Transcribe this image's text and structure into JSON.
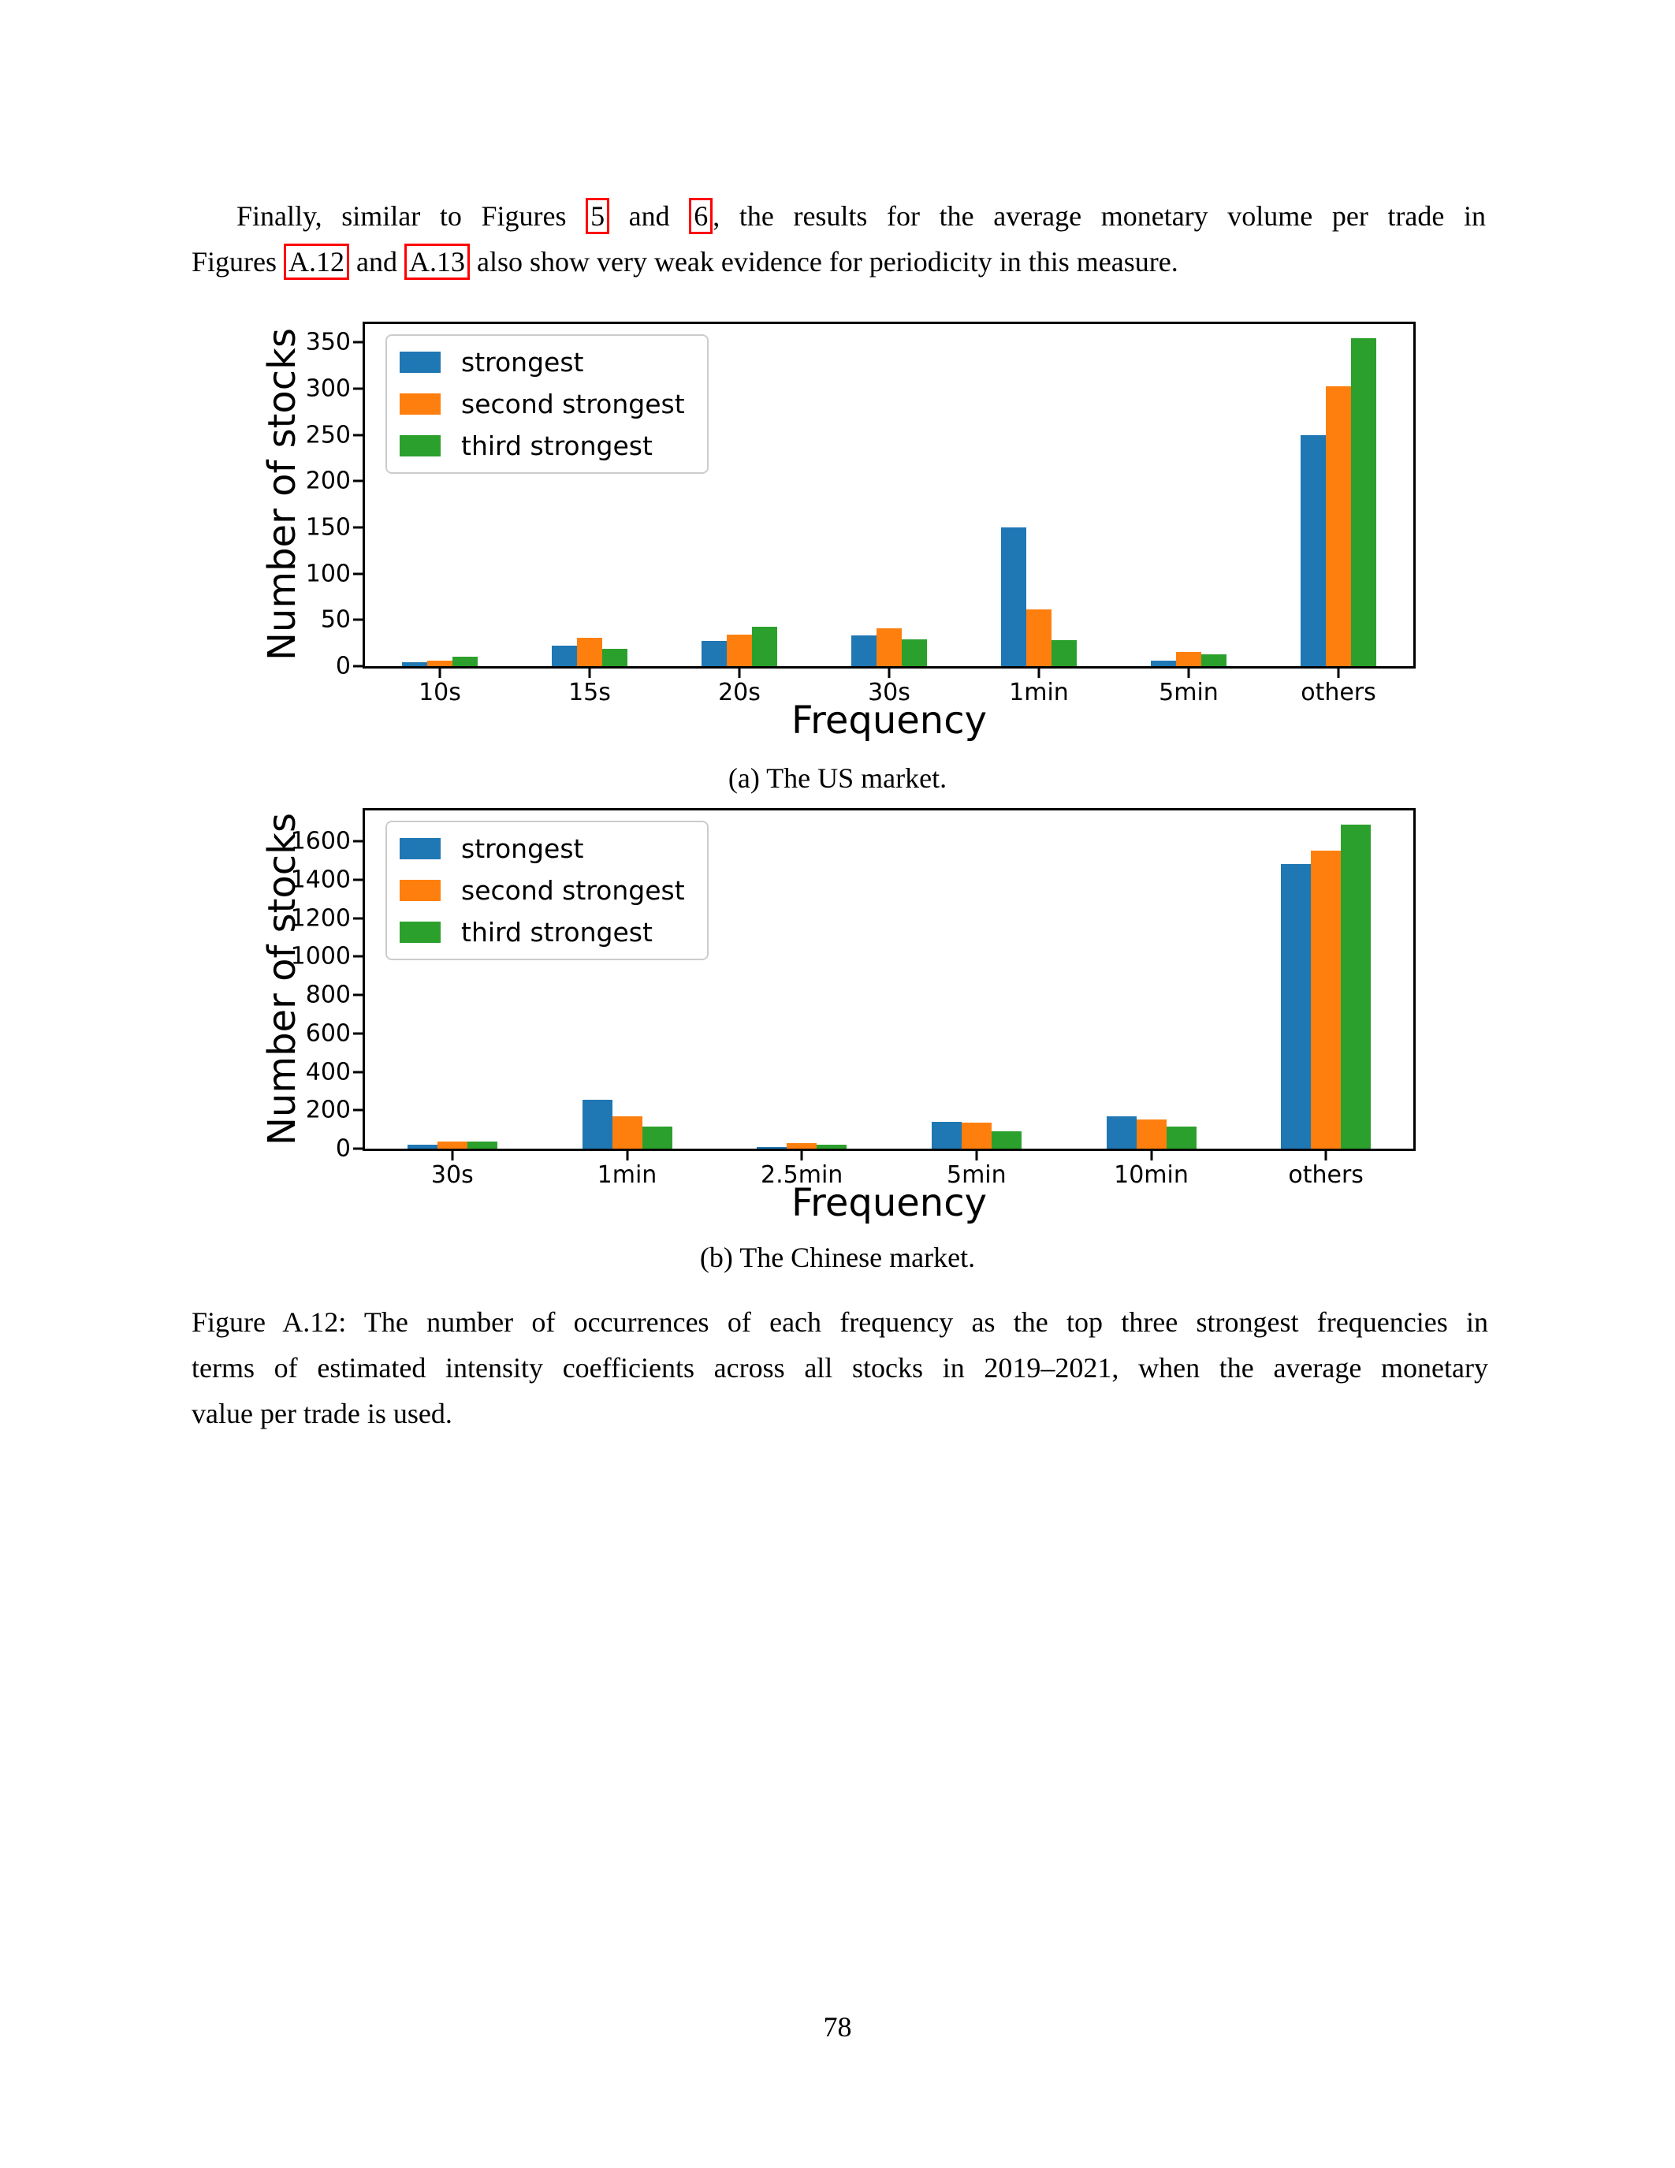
{
  "page": {
    "paragraph": {
      "lines": [
        {
          "justify": true,
          "indent": true,
          "segments": [
            {
              "text": "Finally, similar to Figures "
            },
            {
              "text": "5",
              "link": true
            },
            {
              "text": " and "
            },
            {
              "text": "6",
              "link": true
            },
            {
              "text": ", the results for the average monetary volume per trade in"
            }
          ]
        },
        {
          "segments": [
            {
              "text": "Figures "
            },
            {
              "text": "A.12",
              "link": true
            },
            {
              "text": " and "
            },
            {
              "text": "A.13",
              "link": true
            },
            {
              "text": " also show very weak evidence for periodicity in this measure."
            }
          ]
        }
      ]
    },
    "figure_caption_lines": [
      {
        "justify": true,
        "text": "Figure A.12: The number of occurrences of each frequency as the top three strongest frequencies in"
      },
      {
        "justify": true,
        "text": "terms of estimated intensity coefficients across all stocks in 2019–2021, when the average monetary"
      },
      {
        "text": "value per trade is used."
      }
    ],
    "page_number": "78",
    "link_box_color": "#ff0000"
  },
  "chart_data": [
    {
      "id": "us-market",
      "type": "bar",
      "caption": "(a) The US market.",
      "xlabel": "Frequency",
      "ylabel": "Number of stocks",
      "categories": [
        "10s",
        "15s",
        "20s",
        "30s",
        "1min",
        "5min",
        "others"
      ],
      "series": [
        {
          "name": "strongest",
          "color": "#1f77b4",
          "values": [
            4,
            22,
            27,
            33,
            150,
            6,
            250
          ]
        },
        {
          "name": "second strongest",
          "color": "#ff7f0e",
          "values": [
            6,
            31,
            34,
            41,
            61,
            15,
            303
          ]
        },
        {
          "name": "third strongest",
          "color": "#2ca02c",
          "values": [
            10,
            19,
            43,
            29,
            28,
            13,
            355
          ]
        }
      ],
      "yticks": [
        0,
        50,
        100,
        150,
        200,
        250,
        300,
        350
      ],
      "ylim": [
        0,
        370
      ],
      "legend_position": "upper left",
      "grid": false
    },
    {
      "id": "chinese-market",
      "type": "bar",
      "caption": "(b) The Chinese market.",
      "xlabel": "Frequency",
      "ylabel": "Number of stocks",
      "categories": [
        "30s",
        "1min",
        "2.5min",
        "5min",
        "10min",
        "others"
      ],
      "series": [
        {
          "name": "strongest",
          "color": "#1f77b4",
          "values": [
            20,
            255,
            10,
            140,
            170,
            1480
          ]
        },
        {
          "name": "second strongest",
          "color": "#ff7f0e",
          "values": [
            38,
            170,
            28,
            137,
            152,
            1552
          ]
        },
        {
          "name": "third strongest",
          "color": "#2ca02c",
          "values": [
            38,
            116,
            20,
            92,
            116,
            1688
          ]
        }
      ],
      "yticks": [
        0,
        200,
        400,
        600,
        800,
        1000,
        1200,
        1400,
        1600
      ],
      "ylim": [
        0,
        1760
      ],
      "legend_position": "upper left",
      "grid": false
    }
  ]
}
